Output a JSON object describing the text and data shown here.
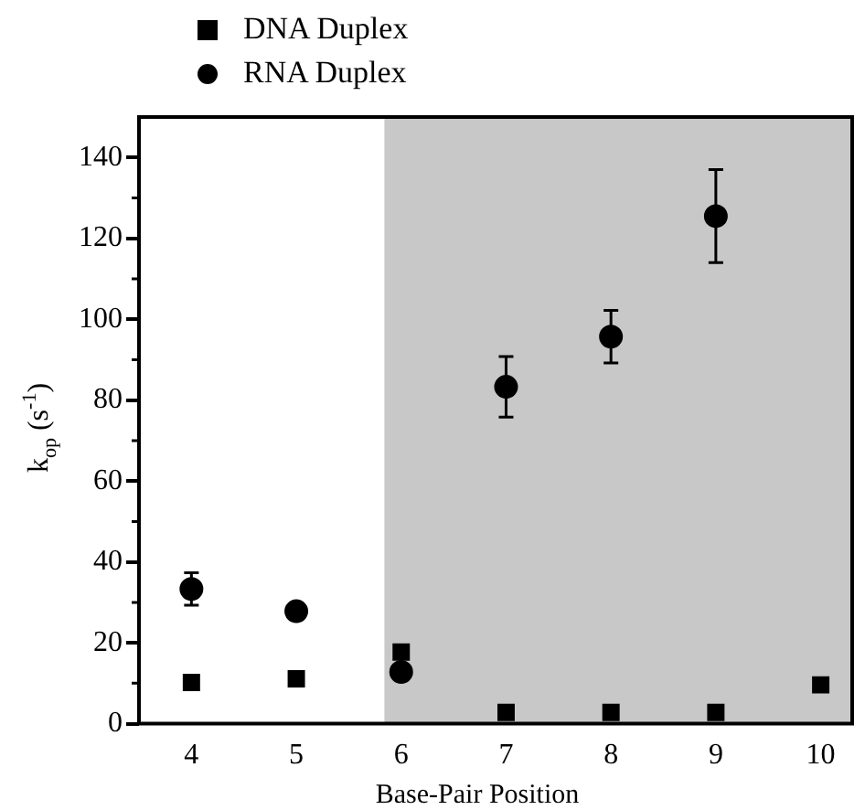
{
  "chart_data": {
    "type": "scatter",
    "xlabel": "Base-Pair Position",
    "ylabel": "k$_{op}$ (s$^{-1}$)",
    "x": [
      4,
      5,
      6,
      7,
      8,
      9,
      10
    ],
    "series": [
      {
        "name": "DNA Duplex",
        "color": "#000000",
        "marker": "square",
        "values": [
          10.2,
          11.1,
          17.7,
          2.8,
          2.8,
          2.8,
          9.6
        ]
      },
      {
        "name": "RNA Duplex",
        "color": "#000000",
        "marker": "circle",
        "values": [
          33.3,
          27.8,
          12.8,
          83.3,
          95.7,
          125.5,
          null
        ],
        "errors": [
          4,
          2,
          null,
          7.5,
          6.5,
          11.5,
          null
        ]
      }
    ],
    "xlim": [
      3.5,
      10.3
    ],
    "xticks": [
      4,
      5,
      6,
      7,
      8,
      9,
      10
    ],
    "ylim": [
      0,
      150
    ],
    "yticks": [
      0,
      20,
      40,
      60,
      80,
      100,
      120,
      140
    ],
    "bands": [
      {
        "axis": "x",
        "from": 5.84,
        "to": 10.3,
        "color": "#c8c8c8"
      }
    ],
    "grid": false,
    "legend": "top left"
  }
}
